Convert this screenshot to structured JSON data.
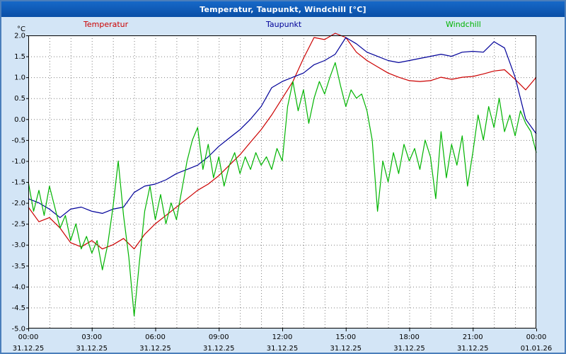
{
  "window": {
    "title": "Temperatur, Taupunkt, Windchill [°C]"
  },
  "colors": {
    "frame_background": "#d3e5f6",
    "frame_border": "#4a7ebb",
    "titlebar": "#0c5cb8",
    "plot_background": "#ffffff",
    "grid": "#808080",
    "axis_text": "#000000",
    "temperatur": "#cc0000",
    "taupunkt": "#000099",
    "windchill": "#00b400"
  },
  "chart_data": {
    "type": "line",
    "title": "Temperatur, Taupunkt, Windchill [°C]",
    "xlabel": "",
    "ylabel": "°C",
    "ylim": [
      -5.0,
      2.0
    ],
    "y_tick_step": 0.5,
    "xlim_hours": [
      0,
      24
    ],
    "grid": "dashed, vertical every 1 hour, horizontal every 0.5 °C",
    "legend_position": "top",
    "x_ticks": [
      {
        "hour": 0,
        "time": "00:00",
        "date": "31.12.25"
      },
      {
        "hour": 3,
        "time": "03:00",
        "date": "31.12.25"
      },
      {
        "hour": 6,
        "time": "06:00",
        "date": "31.12.25"
      },
      {
        "hour": 9,
        "time": "09:00",
        "date": "31.12.25"
      },
      {
        "hour": 12,
        "time": "12:00",
        "date": "31.12.25"
      },
      {
        "hour": 15,
        "time": "15:00",
        "date": "31.12.25"
      },
      {
        "hour": 18,
        "time": "18:00",
        "date": "31.12.25"
      },
      {
        "hour": 21,
        "time": "21:00",
        "date": "31.12.25"
      },
      {
        "hour": 24,
        "time": "00:00",
        "date": "01.01.26"
      }
    ],
    "series": [
      {
        "name": "Temperatur",
        "color": "#cc0000",
        "x_step_hours": 0.5,
        "values": [
          -2.1,
          -2.45,
          -2.35,
          -2.6,
          -2.95,
          -3.05,
          -2.9,
          -3.1,
          -3.0,
          -2.85,
          -3.1,
          -2.75,
          -2.5,
          -2.3,
          -2.1,
          -1.9,
          -1.7,
          -1.55,
          -1.35,
          -1.1,
          -0.85,
          -0.55,
          -0.25,
          0.1,
          0.5,
          0.9,
          1.45,
          1.95,
          1.9,
          2.05,
          1.95,
          1.6,
          1.4,
          1.25,
          1.1,
          1.0,
          0.92,
          0.9,
          0.92,
          1.0,
          0.95,
          1.0,
          1.02,
          1.08,
          1.15,
          1.18,
          0.95,
          0.7,
          1.0
        ]
      },
      {
        "name": "Taupunkt",
        "color": "#000099",
        "x_step_hours": 0.5,
        "values": [
          -1.9,
          -2.0,
          -2.15,
          -2.35,
          -2.15,
          -2.1,
          -2.2,
          -2.25,
          -2.15,
          -2.1,
          -1.75,
          -1.6,
          -1.55,
          -1.45,
          -1.3,
          -1.2,
          -1.1,
          -0.9,
          -0.65,
          -0.45,
          -0.25,
          0.0,
          0.3,
          0.75,
          0.9,
          1.0,
          1.1,
          1.3,
          1.4,
          1.55,
          1.95,
          1.8,
          1.6,
          1.5,
          1.4,
          1.35,
          1.4,
          1.45,
          1.5,
          1.55,
          1.5,
          1.6,
          1.62,
          1.6,
          1.85,
          1.7,
          1.0,
          0.0,
          -0.35
        ]
      },
      {
        "name": "Windchill",
        "color": "#00b400",
        "x_step_hours": 0.25,
        "values": [
          -1.5,
          -2.2,
          -1.7,
          -2.3,
          -1.6,
          -2.1,
          -2.6,
          -2.3,
          -2.9,
          -2.5,
          -3.1,
          -2.8,
          -3.2,
          -2.9,
          -3.6,
          -3.0,
          -2.1,
          -1.0,
          -2.3,
          -3.3,
          -4.7,
          -3.4,
          -2.2,
          -1.6,
          -2.4,
          -1.8,
          -2.5,
          -2.0,
          -2.4,
          -1.7,
          -1.0,
          -0.5,
          -0.2,
          -1.2,
          -0.6,
          -1.4,
          -0.9,
          -1.6,
          -1.1,
          -0.8,
          -1.3,
          -0.9,
          -1.2,
          -0.8,
          -1.1,
          -0.9,
          -1.2,
          -0.7,
          -1.0,
          0.3,
          0.9,
          0.2,
          0.7,
          -0.1,
          0.5,
          0.9,
          0.6,
          1.0,
          1.35,
          0.8,
          0.3,
          0.7,
          0.5,
          0.6,
          0.2,
          -0.5,
          -2.2,
          -1.0,
          -1.5,
          -0.8,
          -1.3,
          -0.6,
          -1.0,
          -0.7,
          -1.2,
          -0.5,
          -0.9,
          -1.9,
          -0.3,
          -1.4,
          -0.6,
          -1.1,
          -0.4,
          -1.6,
          -0.8,
          0.1,
          -0.5,
          0.3,
          -0.2,
          0.5,
          -0.3,
          0.1,
          -0.4,
          0.2,
          -0.1,
          -0.3,
          -0.8
        ]
      }
    ]
  }
}
